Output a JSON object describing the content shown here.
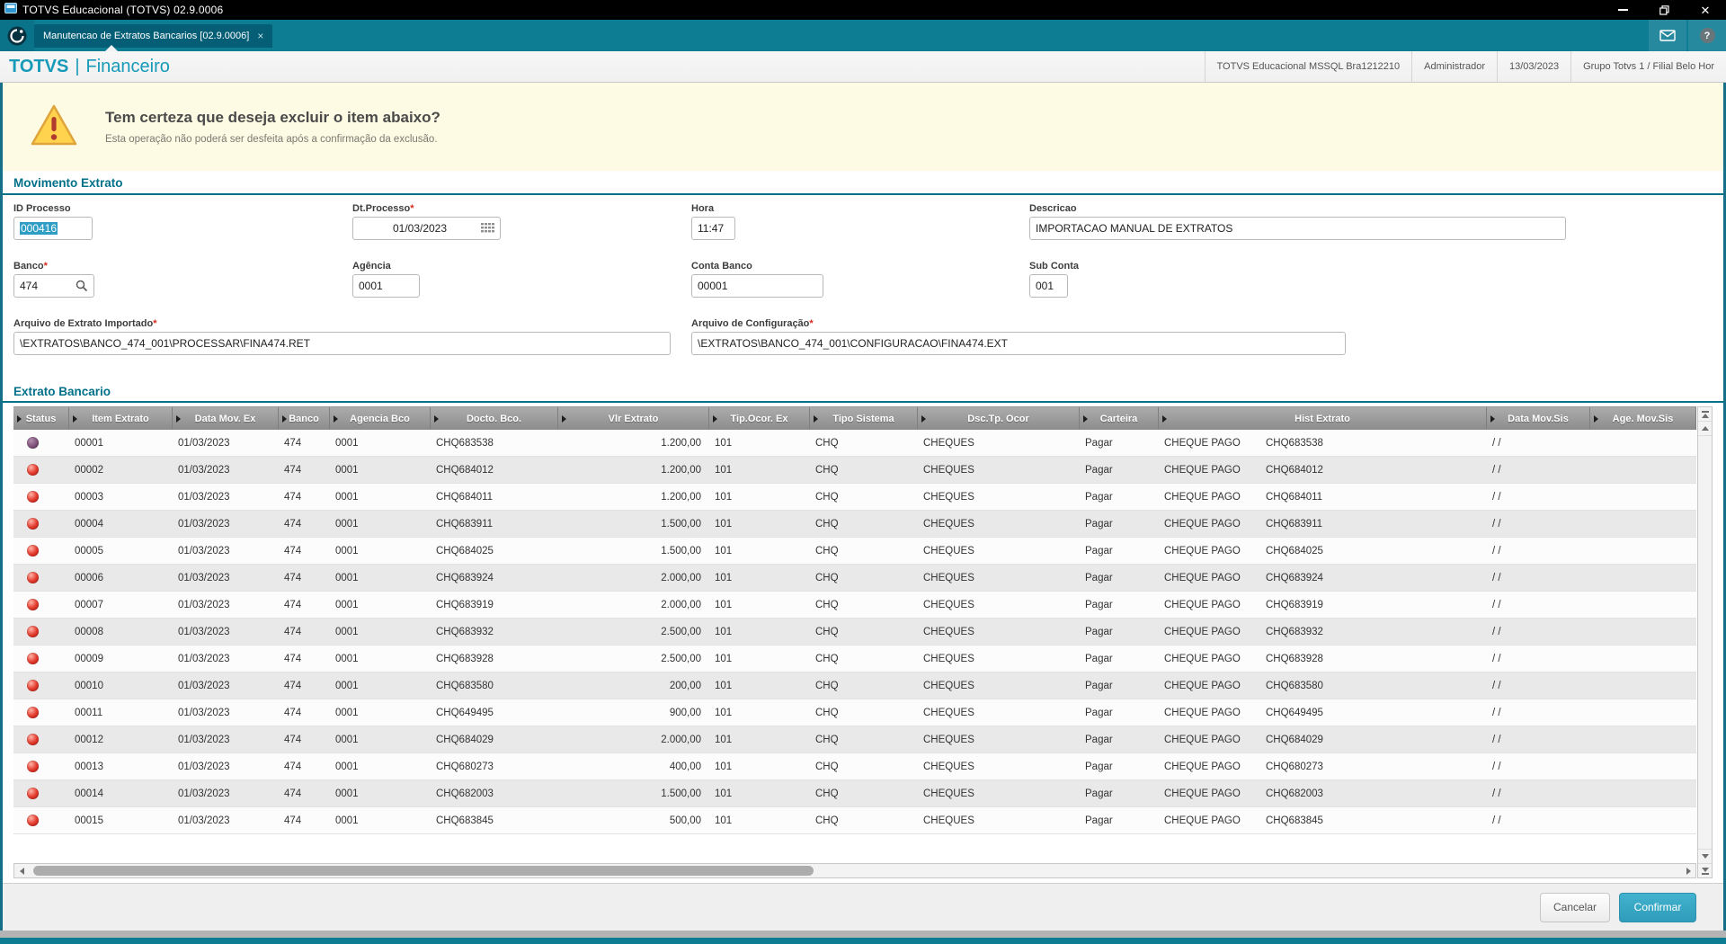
{
  "window": {
    "title": "TOTVS Educacional (TOTVS) 02.9.0006"
  },
  "tab": {
    "label": "Manutencao de Extratos Bancarios [02.9.0006]",
    "close_glyph": "×",
    "help_glyph": "?"
  },
  "header": {
    "brand": "TOTVS",
    "divider": "|",
    "module": "Financeiro",
    "info": [
      "TOTVS Educacional MSSQL Bra1212210",
      "Administrador",
      "13/03/2023",
      "Grupo Totvs 1 / Filial Belo Hor"
    ]
  },
  "warning": {
    "title": "Tem certeza que deseja excluir o item abaixo?",
    "message": "Esta operação não poderá ser desfeita após a confirmação da exclusão."
  },
  "form": {
    "section_title": "Movimento Extrato",
    "required_marker": "*",
    "id_processo": {
      "label": "ID Processo",
      "value": "000416"
    },
    "dt_processo": {
      "label": "Dt.Processo",
      "value": "01/03/2023"
    },
    "hora": {
      "label": "Hora",
      "value": "11:47"
    },
    "descricao": {
      "label": "Descricao",
      "value": "IMPORTACAO MANUAL DE EXTRATOS"
    },
    "banco": {
      "label": "Banco",
      "value": "474"
    },
    "agencia": {
      "label": "Agência",
      "value": "0001"
    },
    "conta_banco": {
      "label": "Conta Banco",
      "value": "00001"
    },
    "sub_conta": {
      "label": "Sub Conta",
      "value": "001"
    },
    "arquivo_extrato": {
      "label": "Arquivo de Extrato Importado",
      "value": "\\EXTRATOS\\BANCO_474_001\\PROCESSAR\\FINA474.RET"
    },
    "arquivo_config": {
      "label": "Arquivo de Configuração",
      "value": "\\EXTRATOS\\BANCO_474_001\\CONFIGURACAO\\FINA474.EXT"
    }
  },
  "grid": {
    "section_title": "Extrato Bancario",
    "columns": [
      "Status",
      "Item Extrato",
      "Data Mov. Ex",
      "Banco",
      "Agencia Bco",
      "Docto. Bco.",
      "Vlr Extrato",
      "Tip.Ocor. Ex",
      "Tipo Sistema",
      "Dsc.Tp. Ocor",
      "Carteira",
      "Hist Extrato",
      "Data Mov.Sis",
      "Age. Mov.Sis"
    ],
    "rows": [
      {
        "status": "purple",
        "item": "00001",
        "data": "01/03/2023",
        "banco": "474",
        "agencia": "0001",
        "docto": "CHQ683538",
        "vlr": "1.200,00",
        "tip": "101",
        "tipo": "CHQ",
        "dsc": "CHEQUES",
        "carteira": "Pagar",
        "hist1": "CHEQUE PAGO",
        "hist2": "CHQ683538",
        "data_sis": "/ /",
        "age_sis": ""
      },
      {
        "status": "red",
        "item": "00002",
        "data": "01/03/2023",
        "banco": "474",
        "agencia": "0001",
        "docto": "CHQ684012",
        "vlr": "1.200,00",
        "tip": "101",
        "tipo": "CHQ",
        "dsc": "CHEQUES",
        "carteira": "Pagar",
        "hist1": "CHEQUE PAGO",
        "hist2": "CHQ684012",
        "data_sis": "/ /",
        "age_sis": ""
      },
      {
        "status": "red",
        "item": "00003",
        "data": "01/03/2023",
        "banco": "474",
        "agencia": "0001",
        "docto": "CHQ684011",
        "vlr": "1.200,00",
        "tip": "101",
        "tipo": "CHQ",
        "dsc": "CHEQUES",
        "carteira": "Pagar",
        "hist1": "CHEQUE PAGO",
        "hist2": "CHQ684011",
        "data_sis": "/ /",
        "age_sis": ""
      },
      {
        "status": "red",
        "item": "00004",
        "data": "01/03/2023",
        "banco": "474",
        "agencia": "0001",
        "docto": "CHQ683911",
        "vlr": "1.500,00",
        "tip": "101",
        "tipo": "CHQ",
        "dsc": "CHEQUES",
        "carteira": "Pagar",
        "hist1": "CHEQUE PAGO",
        "hist2": "CHQ683911",
        "data_sis": "/ /",
        "age_sis": ""
      },
      {
        "status": "red",
        "item": "00005",
        "data": "01/03/2023",
        "banco": "474",
        "agencia": "0001",
        "docto": "CHQ684025",
        "vlr": "1.500,00",
        "tip": "101",
        "tipo": "CHQ",
        "dsc": "CHEQUES",
        "carteira": "Pagar",
        "hist1": "CHEQUE PAGO",
        "hist2": "CHQ684025",
        "data_sis": "/ /",
        "age_sis": ""
      },
      {
        "status": "red",
        "item": "00006",
        "data": "01/03/2023",
        "banco": "474",
        "agencia": "0001",
        "docto": "CHQ683924",
        "vlr": "2.000,00",
        "tip": "101",
        "tipo": "CHQ",
        "dsc": "CHEQUES",
        "carteira": "Pagar",
        "hist1": "CHEQUE PAGO",
        "hist2": "CHQ683924",
        "data_sis": "/ /",
        "age_sis": ""
      },
      {
        "status": "red",
        "item": "00007",
        "data": "01/03/2023",
        "banco": "474",
        "agencia": "0001",
        "docto": "CHQ683919",
        "vlr": "2.000,00",
        "tip": "101",
        "tipo": "CHQ",
        "dsc": "CHEQUES",
        "carteira": "Pagar",
        "hist1": "CHEQUE PAGO",
        "hist2": "CHQ683919",
        "data_sis": "/ /",
        "age_sis": ""
      },
      {
        "status": "red",
        "item": "00008",
        "data": "01/03/2023",
        "banco": "474",
        "agencia": "0001",
        "docto": "CHQ683932",
        "vlr": "2.500,00",
        "tip": "101",
        "tipo": "CHQ",
        "dsc": "CHEQUES",
        "carteira": "Pagar",
        "hist1": "CHEQUE PAGO",
        "hist2": "CHQ683932",
        "data_sis": "/ /",
        "age_sis": ""
      },
      {
        "status": "red",
        "item": "00009",
        "data": "01/03/2023",
        "banco": "474",
        "agencia": "0001",
        "docto": "CHQ683928",
        "vlr": "2.500,00",
        "tip": "101",
        "tipo": "CHQ",
        "dsc": "CHEQUES",
        "carteira": "Pagar",
        "hist1": "CHEQUE PAGO",
        "hist2": "CHQ683928",
        "data_sis": "/ /",
        "age_sis": ""
      },
      {
        "status": "red",
        "item": "00010",
        "data": "01/03/2023",
        "banco": "474",
        "agencia": "0001",
        "docto": "CHQ683580",
        "vlr": "200,00",
        "tip": "101",
        "tipo": "CHQ",
        "dsc": "CHEQUES",
        "carteira": "Pagar",
        "hist1": "CHEQUE PAGO",
        "hist2": "CHQ683580",
        "data_sis": "/ /",
        "age_sis": ""
      },
      {
        "status": "red",
        "item": "00011",
        "data": "01/03/2023",
        "banco": "474",
        "agencia": "0001",
        "docto": "CHQ649495",
        "vlr": "900,00",
        "tip": "101",
        "tipo": "CHQ",
        "dsc": "CHEQUES",
        "carteira": "Pagar",
        "hist1": "CHEQUE PAGO",
        "hist2": "CHQ649495",
        "data_sis": "/ /",
        "age_sis": ""
      },
      {
        "status": "red",
        "item": "00012",
        "data": "01/03/2023",
        "banco": "474",
        "agencia": "0001",
        "docto": "CHQ684029",
        "vlr": "2.000,00",
        "tip": "101",
        "tipo": "CHQ",
        "dsc": "CHEQUES",
        "carteira": "Pagar",
        "hist1": "CHEQUE PAGO",
        "hist2": "CHQ684029",
        "data_sis": "/ /",
        "age_sis": ""
      },
      {
        "status": "red",
        "item": "00013",
        "data": "01/03/2023",
        "banco": "474",
        "agencia": "0001",
        "docto": "CHQ680273",
        "vlr": "400,00",
        "tip": "101",
        "tipo": "CHQ",
        "dsc": "CHEQUES",
        "carteira": "Pagar",
        "hist1": "CHEQUE PAGO",
        "hist2": "CHQ680273",
        "data_sis": "/ /",
        "age_sis": ""
      },
      {
        "status": "red",
        "item": "00014",
        "data": "01/03/2023",
        "banco": "474",
        "agencia": "0001",
        "docto": "CHQ682003",
        "vlr": "1.500,00",
        "tip": "101",
        "tipo": "CHQ",
        "dsc": "CHEQUES",
        "carteira": "Pagar",
        "hist1": "CHEQUE PAGO",
        "hist2": "CHQ682003",
        "data_sis": "/ /",
        "age_sis": ""
      },
      {
        "status": "red",
        "item": "00015",
        "data": "01/03/2023",
        "banco": "474",
        "agencia": "0001",
        "docto": "CHQ683845",
        "vlr": "500,00",
        "tip": "101",
        "tipo": "CHQ",
        "dsc": "CHEQUES",
        "carteira": "Pagar",
        "hist1": "CHEQUE PAGO",
        "hist2": "CHQ683845",
        "data_sis": "/ /",
        "age_sis": ""
      }
    ]
  },
  "footer": {
    "cancel": "Cancelar",
    "confirm": "Confirmar"
  }
}
